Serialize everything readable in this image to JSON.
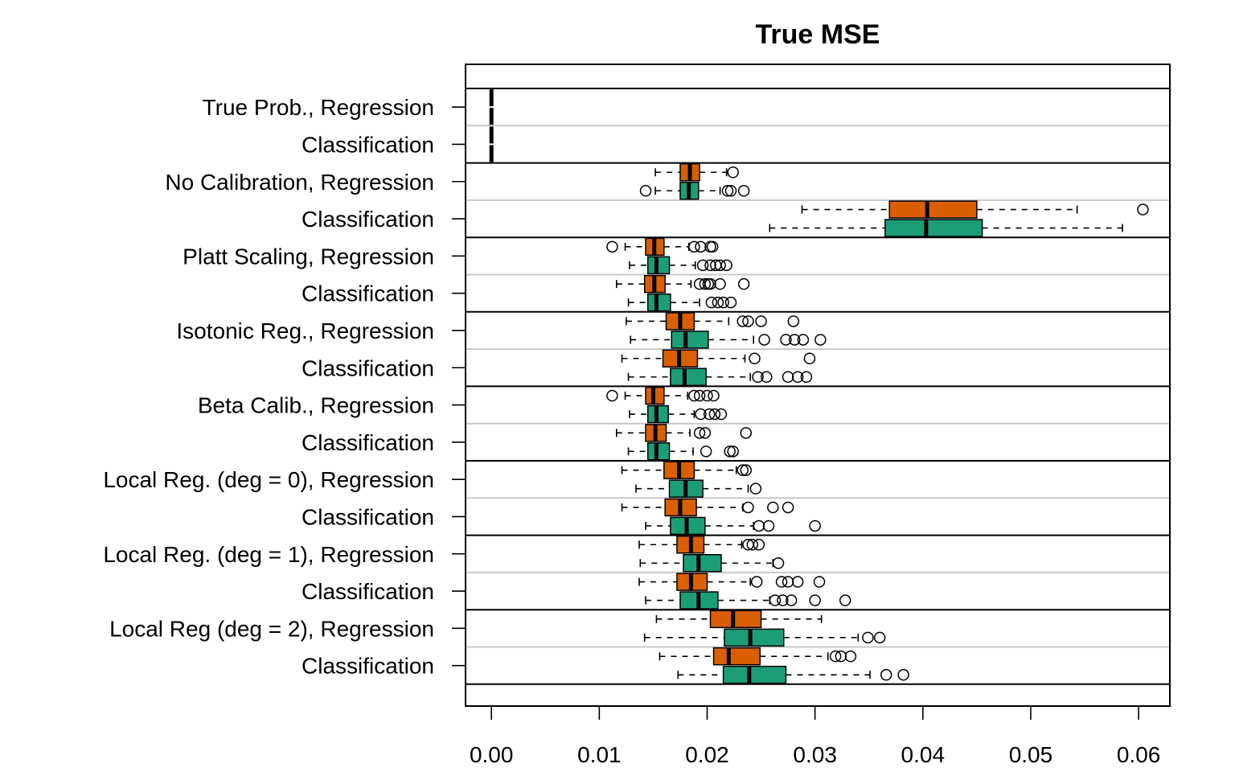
{
  "chart_data": {
    "type": "boxplot",
    "title": "True MSE",
    "xlim": [
      -0.0024,
      0.0629
    ],
    "x_ticks": [
      "0.00",
      "0.01",
      "0.02",
      "0.03",
      "0.04",
      "0.05",
      "0.06"
    ],
    "x_tick_values": [
      0.0,
      0.01,
      0.02,
      0.03,
      0.04,
      0.05,
      0.06
    ],
    "colors": {
      "orange": "#d95f02",
      "green": "#1b9e77",
      "separator": "#c8c8c8"
    },
    "groups": [
      {
        "label": "True Prob., Regression",
        "boxes": [
          {
            "color": "orange",
            "whisker_low": 0.0,
            "q1": 0.0,
            "median": 0.0,
            "q3": 0.0,
            "whisker_high": 0.0,
            "outliers": []
          },
          {
            "color": "green",
            "whisker_low": 0.0,
            "q1": 0.0,
            "median": 0.0,
            "q3": 0.0,
            "whisker_high": 0.0,
            "outliers": []
          }
        ]
      },
      {
        "label": "Classification",
        "boxes": [
          {
            "color": "orange",
            "whisker_low": 0.0,
            "q1": 0.0,
            "median": 0.0,
            "q3": 0.0,
            "whisker_high": 0.0,
            "outliers": []
          },
          {
            "color": "green",
            "whisker_low": 0.0,
            "q1": 0.0,
            "median": 0.0,
            "q3": 0.0,
            "whisker_high": 0.0,
            "outliers": []
          }
        ]
      },
      {
        "label": "No Calibration, Regression",
        "boxes": [
          {
            "color": "orange",
            "whisker_low": 0.0152,
            "q1": 0.0175,
            "median": 0.0184,
            "q3": 0.0193,
            "whisker_high": 0.0218,
            "outliers": [
              0.0224
            ]
          },
          {
            "color": "green",
            "whisker_low": 0.0152,
            "q1": 0.0175,
            "median": 0.0183,
            "q3": 0.0192,
            "whisker_high": 0.0212,
            "outliers": [
              0.0143,
              0.0219,
              0.0222,
              0.0234
            ]
          }
        ]
      },
      {
        "label": "Classification",
        "boxes": [
          {
            "color": "orange",
            "whisker_low": 0.0288,
            "q1": 0.0369,
            "median": 0.0404,
            "q3": 0.045,
            "whisker_high": 0.0543,
            "outliers": [
              0.0604
            ]
          },
          {
            "color": "green",
            "whisker_low": 0.0258,
            "q1": 0.0365,
            "median": 0.0403,
            "q3": 0.0455,
            "whisker_high": 0.0585,
            "outliers": []
          }
        ]
      },
      {
        "label": "Platt Scaling, Regression",
        "boxes": [
          {
            "color": "orange",
            "whisker_low": 0.0124,
            "q1": 0.0143,
            "median": 0.0151,
            "q3": 0.016,
            "whisker_high": 0.0183,
            "outliers": [
              0.0112,
              0.0188,
              0.0194,
              0.0203,
              0.0205
            ]
          },
          {
            "color": "green",
            "whisker_low": 0.0128,
            "q1": 0.0145,
            "median": 0.0153,
            "q3": 0.0165,
            "whisker_high": 0.0189,
            "outliers": [
              0.0196,
              0.0203,
              0.0208,
              0.0212,
              0.0218
            ]
          }
        ]
      },
      {
        "label": "Classification",
        "boxes": [
          {
            "color": "orange",
            "whisker_low": 0.0116,
            "q1": 0.0142,
            "median": 0.0151,
            "q3": 0.0161,
            "whisker_high": 0.0185,
            "outliers": [
              0.0193,
              0.0198,
              0.0201,
              0.0203,
              0.0212,
              0.0234
            ]
          },
          {
            "color": "green",
            "whisker_low": 0.0127,
            "q1": 0.0145,
            "median": 0.0153,
            "q3": 0.0166,
            "whisker_high": 0.0193,
            "outliers": [
              0.0204,
              0.021,
              0.0215,
              0.0222
            ]
          }
        ]
      },
      {
        "label": "Isotonic Reg., Regression",
        "boxes": [
          {
            "color": "orange",
            "whisker_low": 0.0125,
            "q1": 0.0162,
            "median": 0.0175,
            "q3": 0.0188,
            "whisker_high": 0.022,
            "outliers": [
              0.0233,
              0.0238,
              0.025,
              0.028
            ]
          },
          {
            "color": "green",
            "whisker_low": 0.0129,
            "q1": 0.0167,
            "median": 0.018,
            "q3": 0.0201,
            "whisker_high": 0.0243,
            "outliers": [
              0.0253,
              0.0273,
              0.0281,
              0.0289,
              0.0305
            ]
          }
        ]
      },
      {
        "label": "Classification",
        "boxes": [
          {
            "color": "orange",
            "whisker_low": 0.0121,
            "q1": 0.0159,
            "median": 0.0174,
            "q3": 0.0191,
            "whisker_high": 0.0235,
            "outliers": [
              0.0244,
              0.0295
            ]
          },
          {
            "color": "green",
            "whisker_low": 0.0127,
            "q1": 0.0166,
            "median": 0.0179,
            "q3": 0.0199,
            "whisker_high": 0.024,
            "outliers": [
              0.0247,
              0.0255,
              0.0275,
              0.0284,
              0.0292
            ]
          }
        ]
      },
      {
        "label": "Beta Calib., Regression",
        "boxes": [
          {
            "color": "orange",
            "whisker_low": 0.0124,
            "q1": 0.0143,
            "median": 0.015,
            "q3": 0.016,
            "whisker_high": 0.0182,
            "outliers": [
              0.0112,
              0.0188,
              0.0193,
              0.02,
              0.0206
            ]
          },
          {
            "color": "green",
            "whisker_low": 0.0128,
            "q1": 0.0145,
            "median": 0.0153,
            "q3": 0.0164,
            "whisker_high": 0.0188,
            "outliers": [
              0.0194,
              0.0202,
              0.0207,
              0.0213
            ]
          }
        ]
      },
      {
        "label": "Classification",
        "boxes": [
          {
            "color": "orange",
            "whisker_low": 0.0116,
            "q1": 0.0143,
            "median": 0.0152,
            "q3": 0.0162,
            "whisker_high": 0.0184,
            "outliers": [
              0.0193,
              0.0198,
              0.0236
            ]
          },
          {
            "color": "green",
            "whisker_low": 0.0127,
            "q1": 0.0145,
            "median": 0.0153,
            "q3": 0.0165,
            "whisker_high": 0.0187,
            "outliers": [
              0.0199,
              0.0221,
              0.0224
            ]
          }
        ]
      },
      {
        "label": "Local Reg. (deg = 0), Regression",
        "boxes": [
          {
            "color": "orange",
            "whisker_low": 0.0121,
            "q1": 0.016,
            "median": 0.0174,
            "q3": 0.0188,
            "whisker_high": 0.0227,
            "outliers": [
              0.0233,
              0.0236
            ]
          },
          {
            "color": "green",
            "whisker_low": 0.0134,
            "q1": 0.0165,
            "median": 0.018,
            "q3": 0.0196,
            "whisker_high": 0.0238,
            "outliers": [
              0.0245
            ]
          }
        ]
      },
      {
        "label": "Classification",
        "boxes": [
          {
            "color": "orange",
            "whisker_low": 0.0121,
            "q1": 0.0161,
            "median": 0.0175,
            "q3": 0.019,
            "whisker_high": 0.0233,
            "outliers": [
              0.0238,
              0.0261,
              0.0275
            ]
          },
          {
            "color": "green",
            "whisker_low": 0.0143,
            "q1": 0.0166,
            "median": 0.0181,
            "q3": 0.0198,
            "whisker_high": 0.0243,
            "outliers": [
              0.0248,
              0.0257,
              0.03
            ]
          }
        ]
      },
      {
        "label": "Local Reg. (deg = 1), Regression",
        "boxes": [
          {
            "color": "orange",
            "whisker_low": 0.0137,
            "q1": 0.0172,
            "median": 0.0185,
            "q3": 0.0197,
            "whisker_high": 0.0232,
            "outliers": [
              0.0238,
              0.0242,
              0.0248
            ]
          },
          {
            "color": "green",
            "whisker_low": 0.0138,
            "q1": 0.0178,
            "median": 0.0192,
            "q3": 0.0213,
            "whisker_high": 0.0261,
            "outliers": [
              0.0266
            ]
          }
        ]
      },
      {
        "label": "Classification",
        "boxes": [
          {
            "color": "orange",
            "whisker_low": 0.0137,
            "q1": 0.0172,
            "median": 0.0185,
            "q3": 0.02,
            "whisker_high": 0.024,
            "outliers": [
              0.0246,
              0.0269,
              0.0275,
              0.0284,
              0.0304
            ]
          },
          {
            "color": "green",
            "whisker_low": 0.0143,
            "q1": 0.0175,
            "median": 0.0192,
            "q3": 0.021,
            "whisker_high": 0.0258,
            "outliers": [
              0.0263,
              0.027,
              0.0278,
              0.03,
              0.0328
            ]
          }
        ]
      },
      {
        "label": "Local Reg (deg = 2), Regression",
        "boxes": [
          {
            "color": "orange",
            "whisker_low": 0.0153,
            "q1": 0.0203,
            "median": 0.0224,
            "q3": 0.025,
            "whisker_high": 0.0306,
            "outliers": []
          },
          {
            "color": "green",
            "whisker_low": 0.0142,
            "q1": 0.0216,
            "median": 0.024,
            "q3": 0.0271,
            "whisker_high": 0.034,
            "outliers": [
              0.0349,
              0.036
            ]
          }
        ]
      },
      {
        "label": "Classification",
        "boxes": [
          {
            "color": "orange",
            "whisker_low": 0.0156,
            "q1": 0.0206,
            "median": 0.022,
            "q3": 0.0249,
            "whisker_high": 0.0312,
            "outliers": [
              0.0319,
              0.0324,
              0.0333
            ]
          },
          {
            "color": "green",
            "whisker_low": 0.0173,
            "q1": 0.0215,
            "median": 0.0239,
            "q3": 0.0273,
            "whisker_high": 0.0351,
            "outliers": [
              0.0366,
              0.0382
            ]
          }
        ]
      }
    ]
  }
}
